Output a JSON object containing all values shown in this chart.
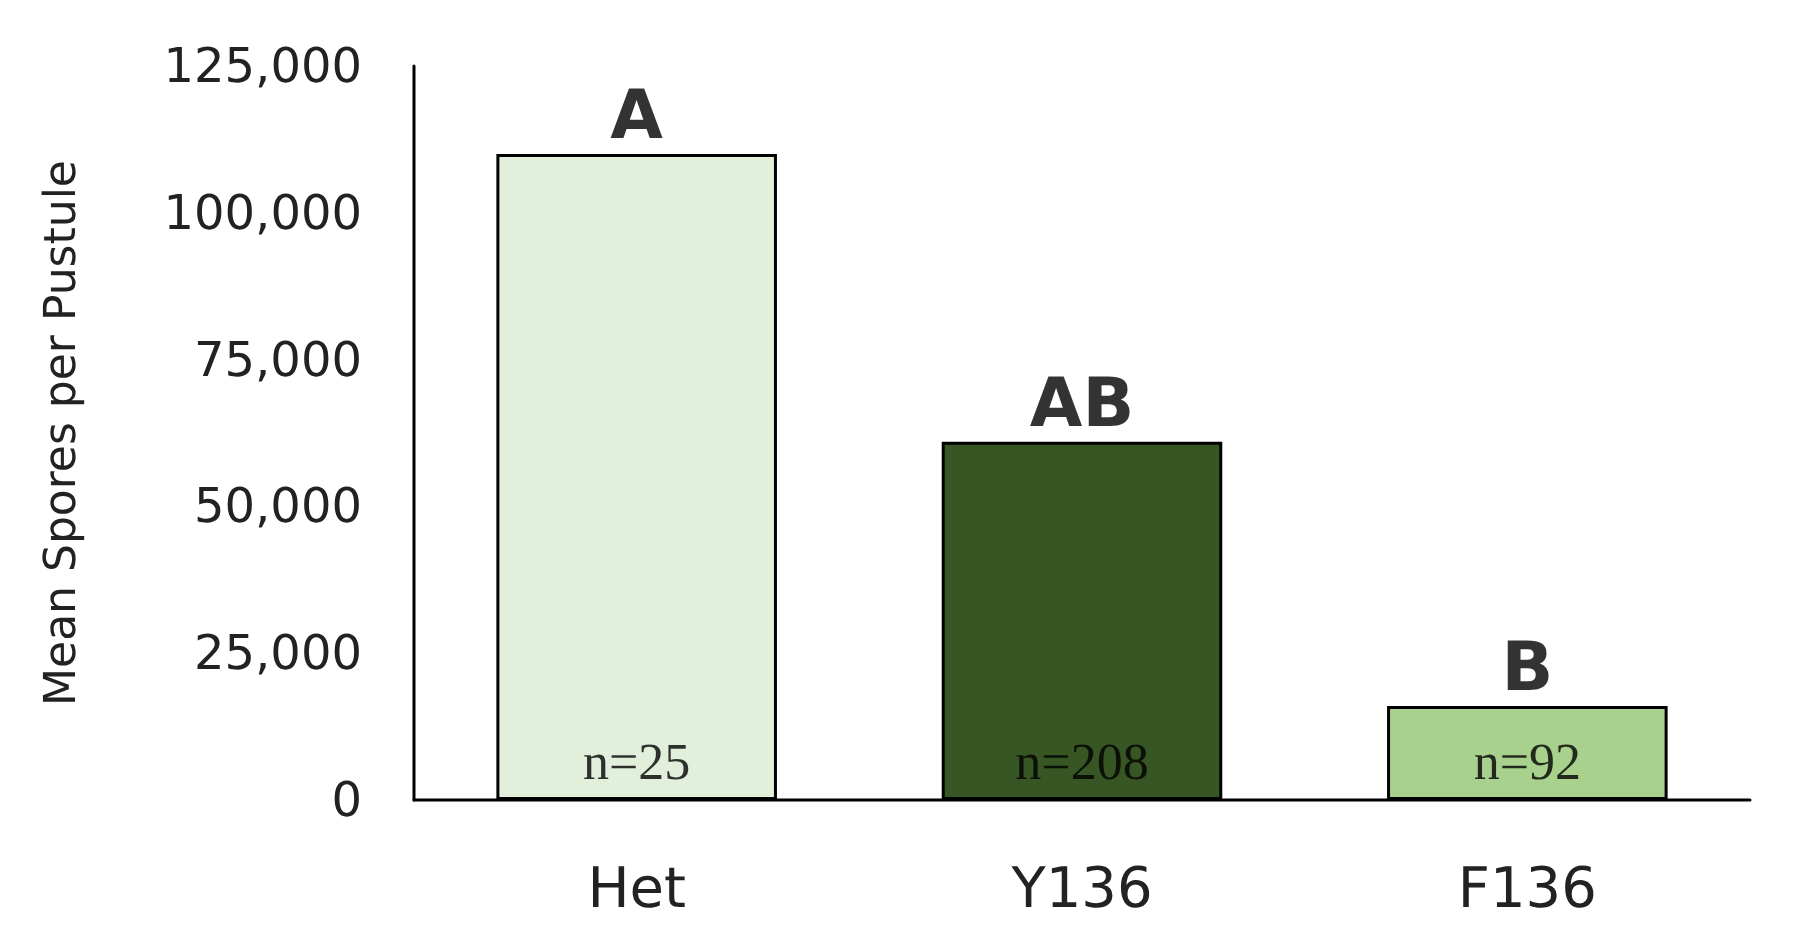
{
  "chart_data": {
    "type": "bar",
    "ylabel": "Mean Spores per Pustule",
    "categories": [
      "Het",
      "Y136",
      "F136"
    ],
    "values": [
      110000,
      61000,
      16000
    ],
    "colors": [
      "#e2efda",
      "#375623",
      "#a9d18e"
    ],
    "ylim": [
      0,
      125000
    ],
    "yticks": [
      0,
      {
        "value": 25000,
        "label": "25,000"
      },
      {
        "value": 50000,
        "label": "50,000"
      },
      {
        "value": 75000,
        "label": "75,000"
      },
      {
        "value": 100000,
        "label": "100,000"
      },
      {
        "value": 125000,
        "label": "125,000"
      }
    ],
    "grid": false,
    "annotations": [
      {
        "text": "A",
        "x": "Het",
        "y": 110000
      },
      {
        "text": "AB",
        "x": "Y136",
        "y": 61000
      },
      {
        "text": "B",
        "x": "F136",
        "y": 16000
      },
      {
        "text": "n=25",
        "x": "Het",
        "y": 0
      },
      {
        "text": "n=208",
        "x": "Y136",
        "y": 0
      },
      {
        "text": "n=92",
        "x": "F136",
        "y": 0
      }
    ]
  }
}
